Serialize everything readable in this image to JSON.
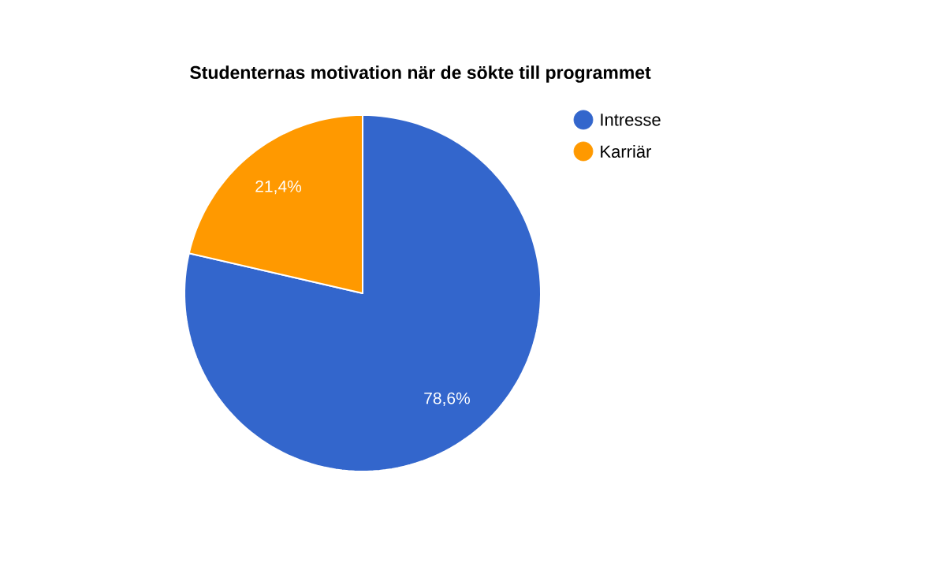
{
  "chart_data": {
    "type": "pie",
    "title": "Studenternas motivation när de sökte till programmet",
    "categories": [
      "Intresse",
      "Karriär"
    ],
    "values": [
      78.6,
      21.4
    ],
    "value_labels": [
      "78,6%",
      "21,4%"
    ],
    "colors": [
      "#3366cc",
      "#ff9900"
    ],
    "legend": "right"
  }
}
